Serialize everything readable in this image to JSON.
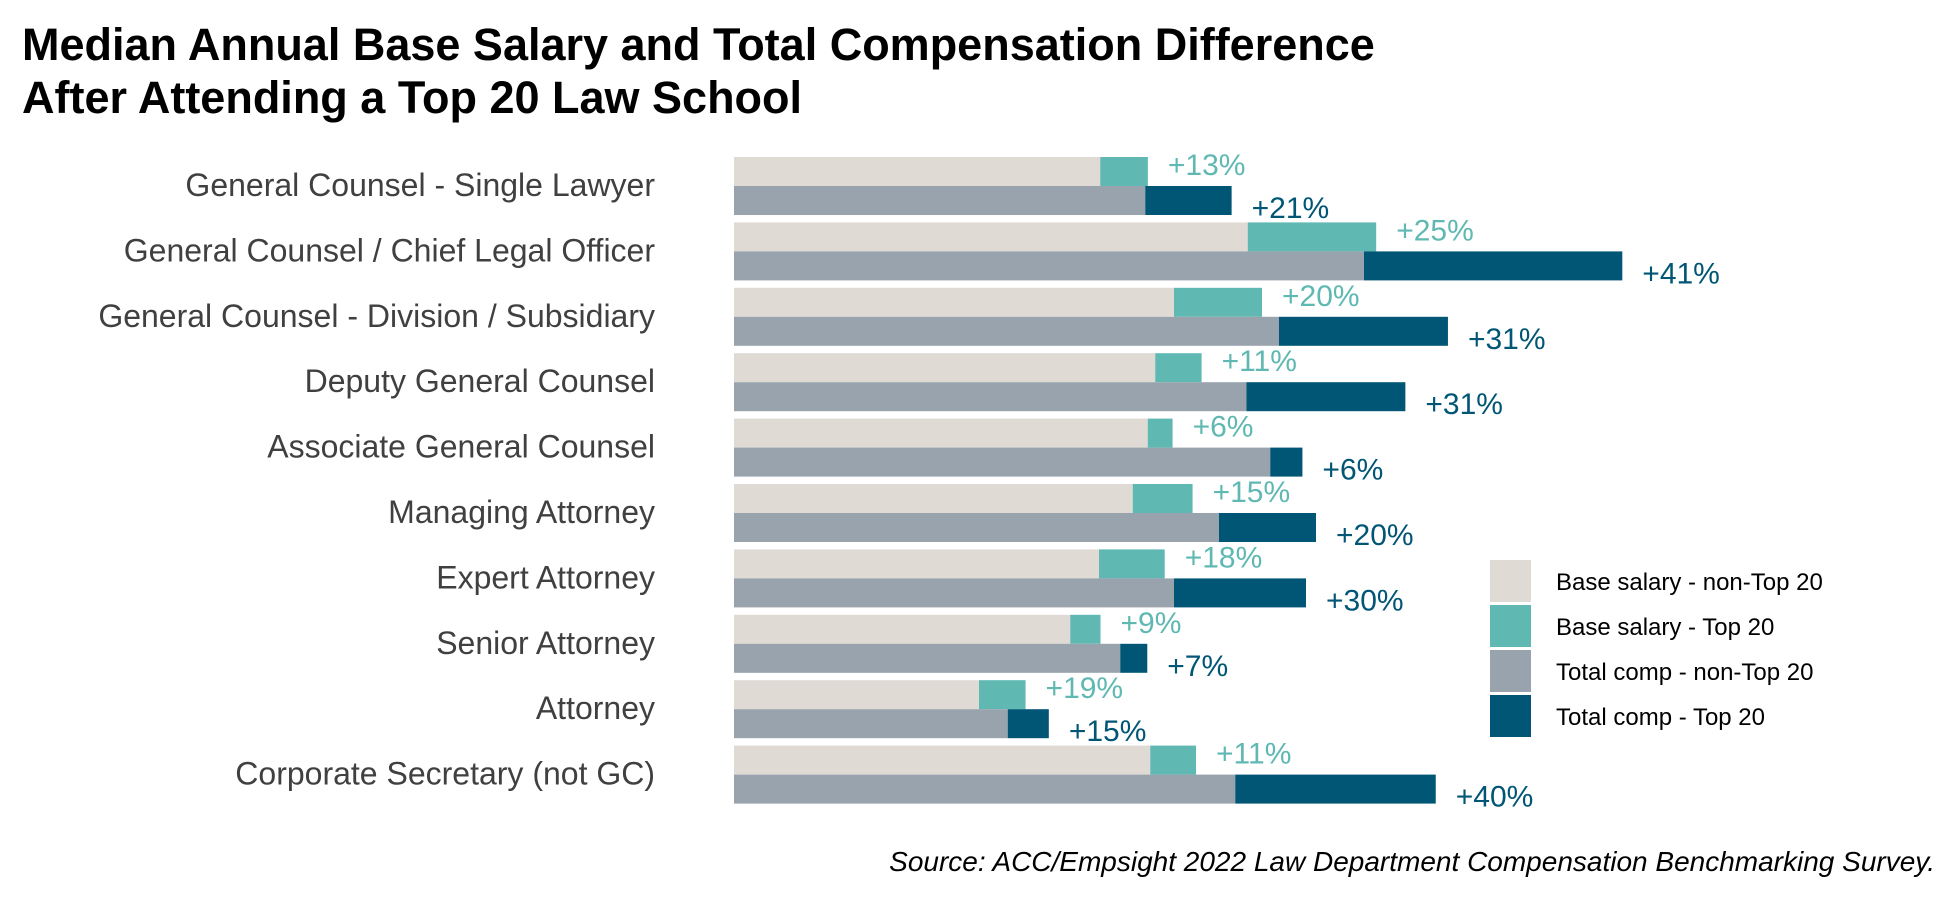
{
  "chart_data": {
    "type": "bar",
    "orientation": "horizontal",
    "title": [
      "Median Annual Base Salary and Total Compensation Difference",
      "After Attending a Top 20 Law School"
    ],
    "categories": [
      "General Counsel - Single Lawyer",
      "General Counsel / Chief Legal Officer",
      "General Counsel - Division / Subsidiary",
      "Deputy General Counsel",
      "Associate General Counsel",
      "Managing Attorney",
      "Expert Attorney",
      "Senior Attorney",
      "Attorney",
      "Corporate Secretary (not GC)"
    ],
    "base_salary_non_top20_relative": [
      293,
      411,
      352,
      337,
      331,
      319,
      292,
      269,
      196,
      333
    ],
    "total_comp_non_top20_relative": [
      329,
      504,
      436,
      410,
      429,
      388,
      352,
      309,
      219,
      401
    ],
    "base_salary_top20_difference": [
      "+13%",
      "+25%",
      "+20%",
      "+11%",
      "+6%",
      "+15%",
      "+18%",
      "+9%",
      "+19%",
      "+11%"
    ],
    "total_comp_top20_difference": [
      "+21%",
      "+41%",
      "+31%",
      "+31%",
      "+6%",
      "+20%",
      "+30%",
      "+7%",
      "+15%",
      "+40%"
    ],
    "axis_shown": false,
    "grid": false,
    "legend_position": "right",
    "legend": [
      {
        "name": "Base salary - non-Top 20",
        "color": "#e0dad5"
      },
      {
        "name": "Base salary - Top 20",
        "color": "#5fb8b2"
      },
      {
        "name": "Total comp - non-Top 20",
        "color": "#98a3ad"
      },
      {
        "name": "Total comp - Top 20",
        "color": "#005674"
      }
    ]
  },
  "source": "Source: ACC/Empsight 2022 Law Department Compensation Benchmarking Survey."
}
